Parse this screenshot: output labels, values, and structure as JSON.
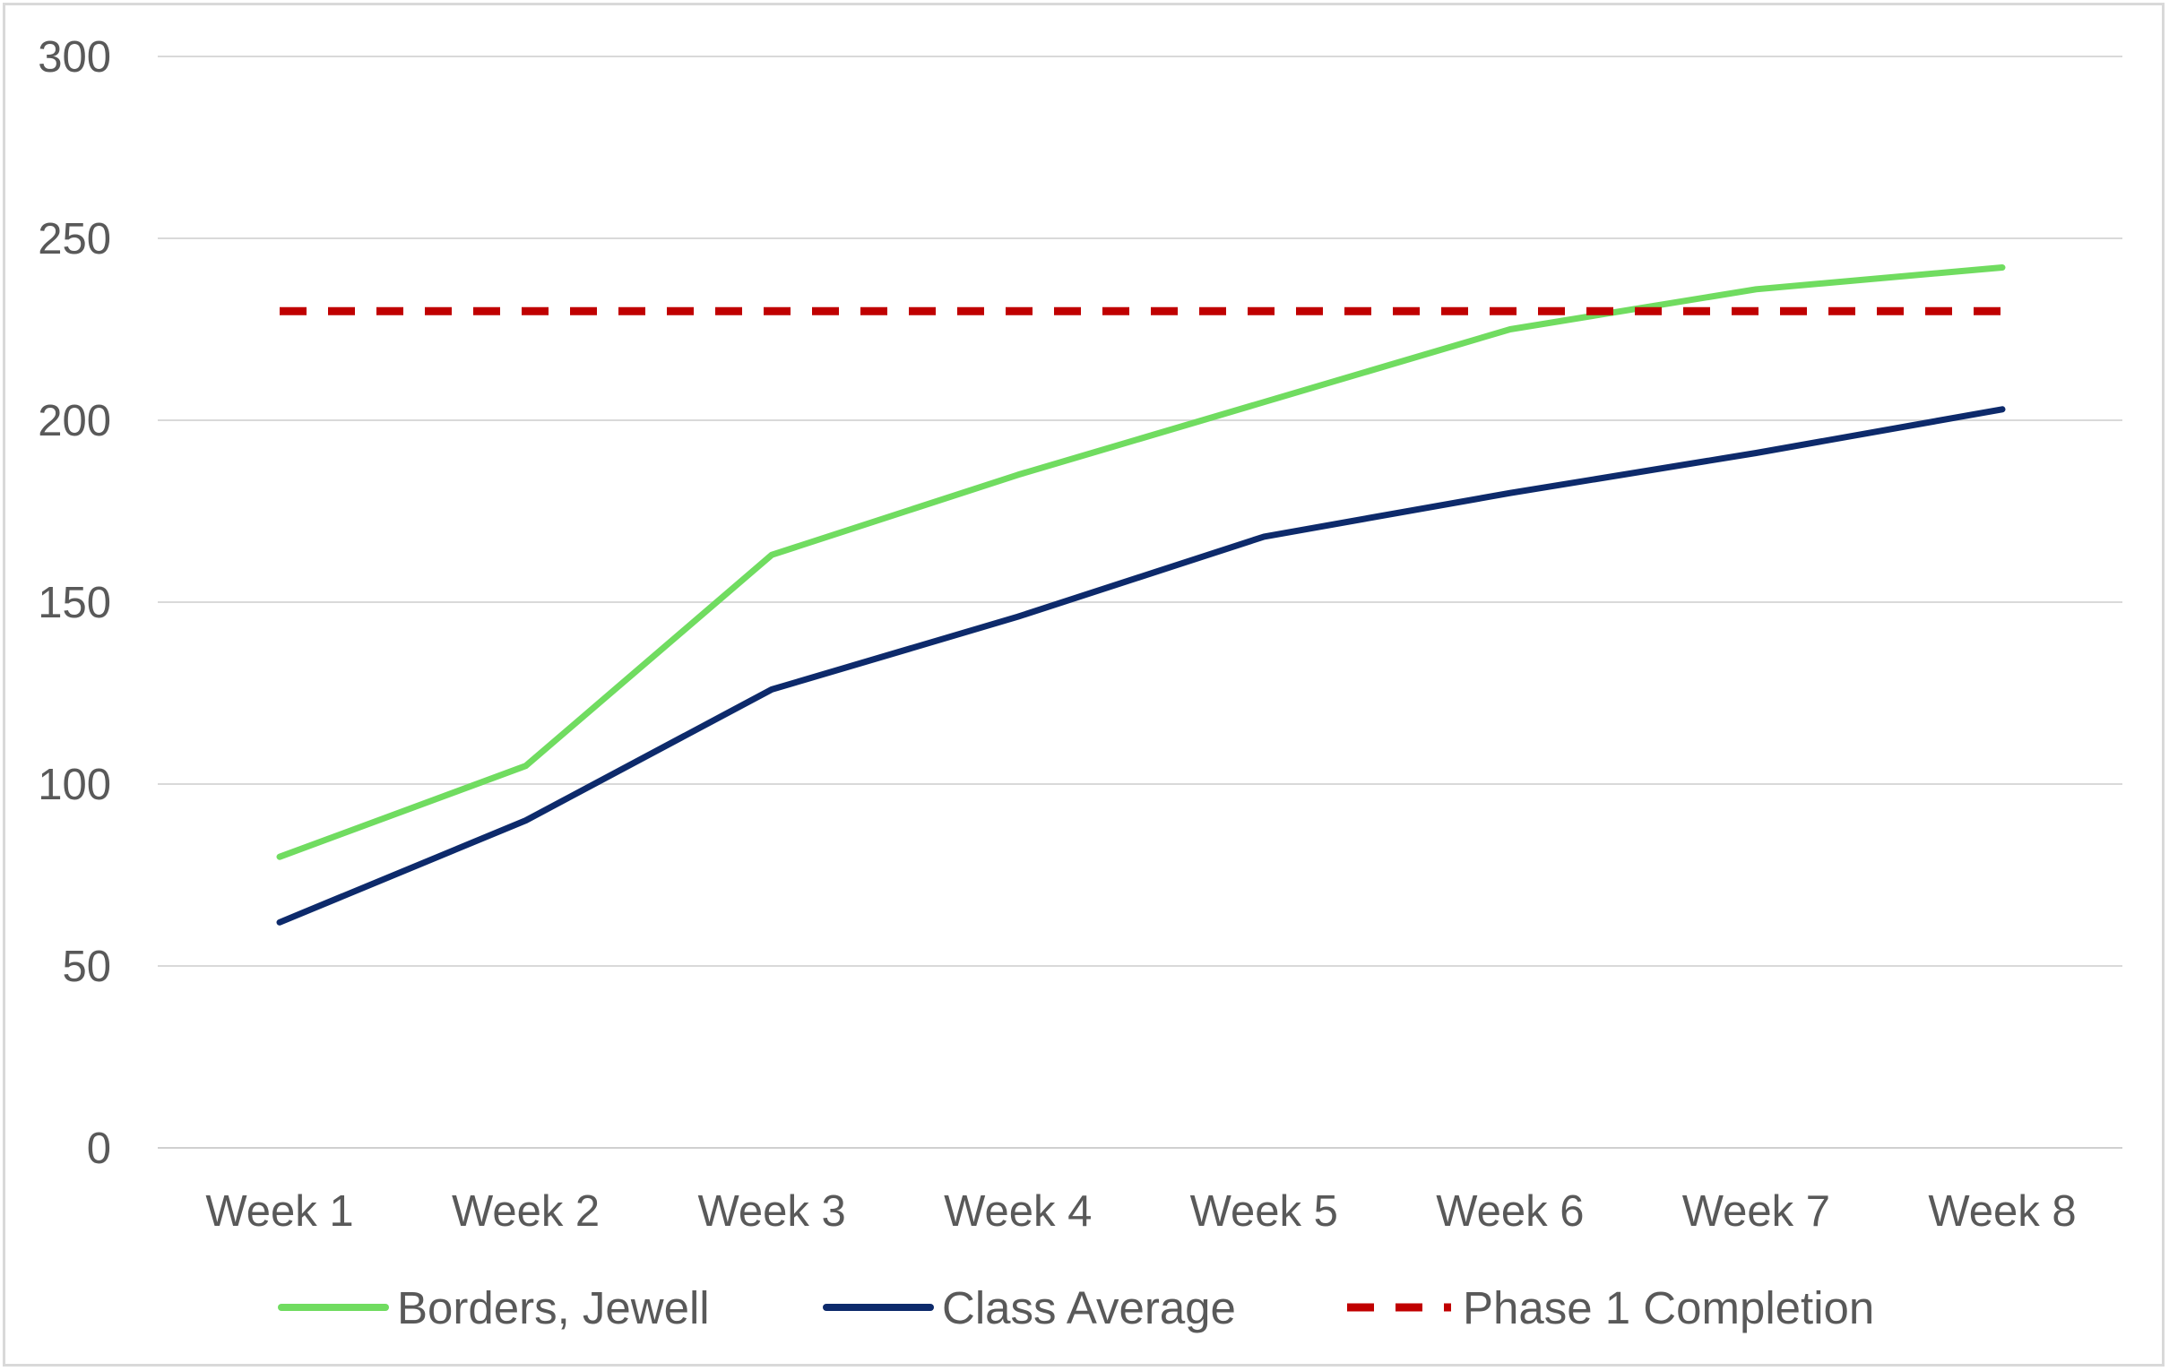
{
  "chart_data": {
    "type": "line",
    "title": "",
    "xlabel": "",
    "ylabel": "",
    "categories": [
      "Week 1",
      "Week 2",
      "Week 3",
      "Week 4",
      "Week 5",
      "Week 6",
      "Week 7",
      "Week 8"
    ],
    "ylim": [
      0,
      300
    ],
    "yticks": [
      0,
      50,
      100,
      150,
      200,
      250,
      300
    ],
    "grid": true,
    "legend_position": "bottom",
    "series": [
      {
        "name": "Borders, Jewell",
        "color": "#70DC60",
        "dash": "solid",
        "values": [
          80,
          105,
          163,
          185,
          205,
          225,
          236,
          242
        ]
      },
      {
        "name": "Class Average",
        "color": "#0D2A6B",
        "dash": "solid",
        "values": [
          62,
          90,
          126,
          146,
          168,
          180,
          191,
          203
        ]
      },
      {
        "name": "Phase 1 Completion",
        "color": "#C00000",
        "dash": "dashed",
        "values": [
          230,
          230,
          230,
          230,
          230,
          230,
          230,
          230
        ]
      }
    ]
  }
}
